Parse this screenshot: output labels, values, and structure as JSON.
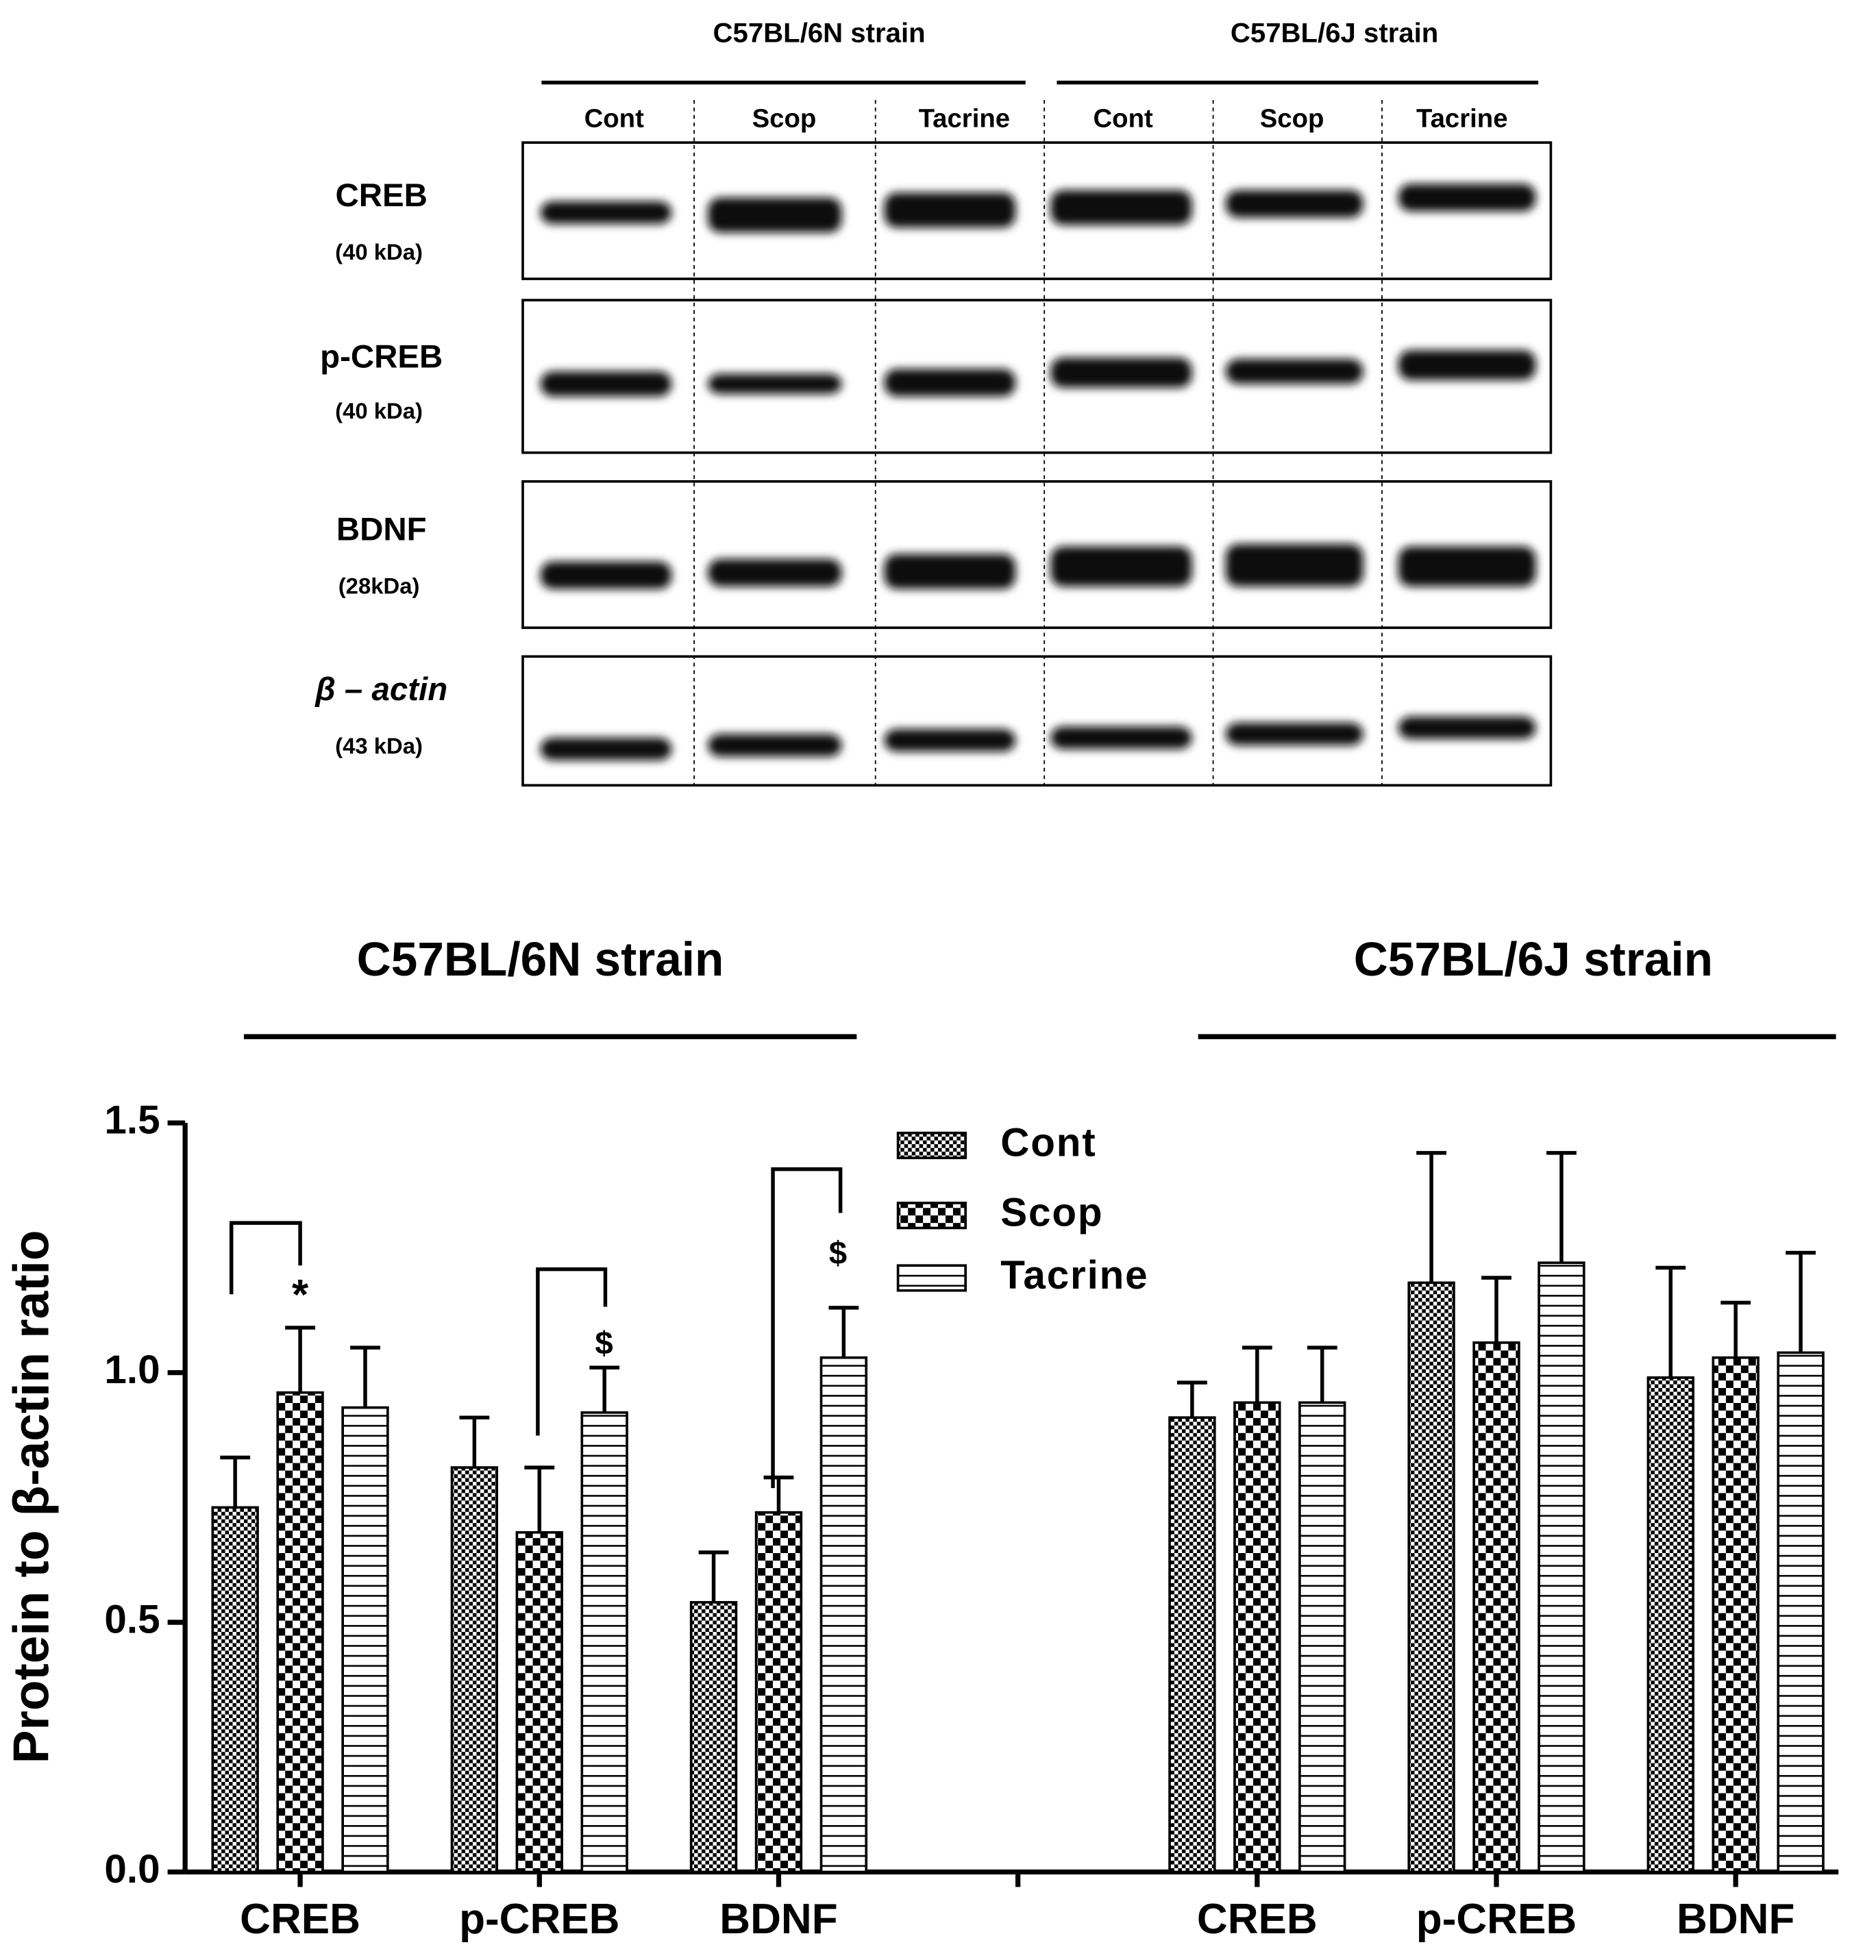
{
  "blot": {
    "strains": [
      "C57BL/6N strain",
      "C57BL/6J strain"
    ],
    "lanes": [
      "Cont",
      "Scop",
      "Tacrine",
      "Cont",
      "Scop",
      "Tacrine"
    ],
    "rows": [
      {
        "protein": "CREB",
        "size": "(40 kDa)"
      },
      {
        "protein": "p-CREB",
        "size": "(40 kDa)"
      },
      {
        "protein": "BDNF",
        "size": "(28kDa)"
      },
      {
        "protein": "β – actin",
        "size": "(43 kDa)"
      }
    ]
  },
  "chart_data": {
    "type": "bar",
    "group_titles": [
      "C57BL/6N strain",
      "C57BL/6J strain"
    ],
    "y_label": "Protein to β-actin ratio",
    "categories": [
      "CREB",
      "p-CREB",
      "BDNF",
      null,
      "CREB",
      "p-CREB",
      "BDNF"
    ],
    "series": [
      {
        "name": "Cont",
        "color": "#000000",
        "pattern": "fine-checker",
        "values": [
          0.73,
          0.81,
          0.54,
          null,
          0.91,
          1.18,
          0.99
        ],
        "errors": [
          0.1,
          0.1,
          0.1,
          null,
          0.07,
          0.26,
          0.22
        ]
      },
      {
        "name": "Scop",
        "color": "#000000",
        "pattern": "checker",
        "values": [
          0.96,
          0.68,
          0.72,
          null,
          0.94,
          1.06,
          1.03
        ],
        "errors": [
          0.13,
          0.13,
          0.07,
          null,
          0.11,
          0.13,
          0.11
        ]
      },
      {
        "name": "Tacrine",
        "color": "#000000",
        "pattern": "hlines",
        "values": [
          0.93,
          0.92,
          1.03,
          null,
          0.94,
          1.22,
          1.04
        ],
        "errors": [
          0.12,
          0.09,
          0.1,
          null,
          0.11,
          0.22,
          0.2
        ]
      }
    ],
    "ylim": [
      0,
      1.5
    ],
    "yticks": [
      {
        "value": 0,
        "label": "0.0"
      },
      0.5,
      {
        "value": 1,
        "label": "1.0"
      },
      1.5
    ],
    "annotations": [
      "*",
      "$",
      "$"
    ],
    "grid": false
  }
}
